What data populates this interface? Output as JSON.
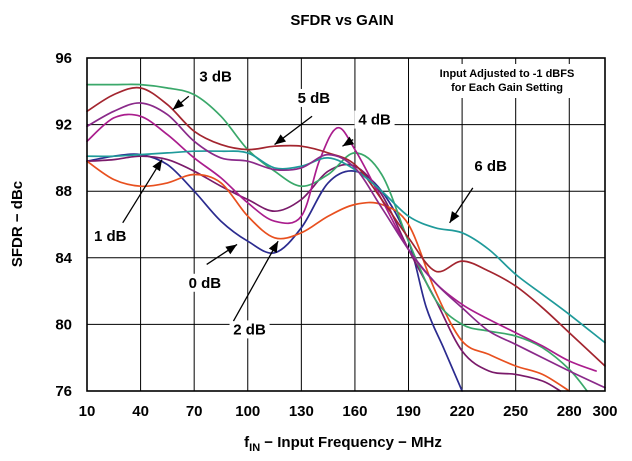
{
  "chart_data": {
    "type": "line",
    "title": "SFDR vs GAIN",
    "xlabel": {
      "main": "f",
      "sub": "IN",
      "rest": " − Input Frequency − MHz"
    },
    "ylabel": "SFDR − dBc",
    "xlim": [
      10,
      300
    ],
    "ylim": [
      76,
      96
    ],
    "xticks": [
      "10",
      "40",
      "70",
      "100",
      "130",
      "160",
      "190",
      "220",
      "250",
      "280",
      "300"
    ],
    "yticks": [
      "76",
      "80",
      "84",
      "88",
      "92",
      "96"
    ],
    "grid": true,
    "note": [
      "Input Adjusted to -1 dBFS",
      "for Each Gain Setting"
    ],
    "series": [
      {
        "name": "0 dB",
        "color": "#2b2b8f",
        "x": [
          10,
          25,
          40,
          55,
          70,
          85,
          100,
          115,
          130,
          145,
          160,
          175,
          190,
          200,
          210,
          220
        ],
        "y": [
          89.8,
          90.1,
          90.2,
          89.6,
          88.0,
          86.2,
          85.0,
          84.3,
          85.8,
          88.5,
          89.2,
          88.0,
          85.0,
          81.0,
          78.5,
          76.0
        ]
      },
      {
        "name": "1 dB",
        "color": "#7a1a6a",
        "x": [
          10,
          25,
          40,
          55,
          70,
          85,
          100,
          115,
          130,
          145,
          160,
          175,
          190,
          205,
          220,
          235,
          250,
          265,
          275
        ],
        "y": [
          89.8,
          89.9,
          90.1,
          89.9,
          89.2,
          88.3,
          87.5,
          86.8,
          87.5,
          89.2,
          89.5,
          87.8,
          84.5,
          81.5,
          78.4,
          77.2,
          77.0,
          76.6,
          76.0
        ]
      },
      {
        "name": "2 dB",
        "color": "#e8501f",
        "x": [
          10,
          25,
          40,
          55,
          70,
          85,
          100,
          115,
          130,
          145,
          160,
          175,
          190,
          205,
          220,
          235,
          250,
          265,
          280
        ],
        "y": [
          89.8,
          88.7,
          88.3,
          88.5,
          89.0,
          88.5,
          86.5,
          85.2,
          85.5,
          86.5,
          87.2,
          87.2,
          86.0,
          82.0,
          79.0,
          78.2,
          77.5,
          77.0,
          76.0
        ]
      },
      {
        "name": "3 dB",
        "color": "#3aa86a",
        "x": [
          10,
          25,
          40,
          55,
          70,
          85,
          100,
          115,
          130,
          145,
          160,
          175,
          190,
          205,
          220,
          235,
          250,
          265,
          280,
          290
        ],
        "y": [
          94.4,
          94.4,
          94.4,
          94.2,
          93.8,
          92.5,
          90.5,
          89.2,
          88.3,
          89.0,
          90.3,
          89.0,
          85.0,
          81.5,
          80.0,
          79.6,
          79.3,
          78.6,
          77.3,
          76.0
        ]
      },
      {
        "name": "4 dB",
        "color": "#aa1d8d",
        "x": [
          10,
          25,
          40,
          55,
          70,
          85,
          100,
          115,
          130,
          140,
          150,
          160,
          175,
          190,
          205,
          220,
          235,
          250,
          265,
          280,
          295
        ],
        "y": [
          91.0,
          92.4,
          92.5,
          91.4,
          90.0,
          88.8,
          87.3,
          86.2,
          86.5,
          89.8,
          91.8,
          90.5,
          87.5,
          84.5,
          82.5,
          81.2,
          80.3,
          79.5,
          78.7,
          77.8,
          77.2
        ]
      },
      {
        "name": "5 dB",
        "color": "#a3252f",
        "x": [
          10,
          25,
          40,
          55,
          70,
          85,
          100,
          115,
          130,
          145,
          160,
          175,
          190,
          205,
          220,
          235,
          250,
          265,
          280,
          300
        ],
        "y": [
          92.8,
          93.8,
          94.2,
          93.2,
          91.6,
          90.8,
          90.5,
          90.7,
          90.7,
          90.3,
          89.6,
          87.5,
          85.2,
          83.2,
          83.8,
          83.2,
          82.3,
          81.0,
          79.5,
          77.5
        ]
      },
      {
        "name": "6 dB",
        "color": "#1f9a9a",
        "x": [
          10,
          25,
          40,
          55,
          70,
          85,
          100,
          115,
          130,
          145,
          160,
          175,
          190,
          205,
          220,
          235,
          250,
          265,
          280,
          300
        ],
        "y": [
          90.1,
          90.1,
          90.2,
          90.3,
          90.4,
          90.4,
          90.3,
          89.4,
          89.5,
          90.0,
          89.3,
          88.0,
          86.5,
          85.8,
          85.5,
          84.5,
          83.0,
          81.8,
          80.6,
          78.9
        ]
      },
      {
        "name": "",
        "color": "#8a2a8a",
        "x": [
          10,
          25,
          40,
          55,
          70,
          85,
          100,
          115,
          130,
          145,
          160,
          175,
          190,
          205,
          220,
          235,
          250,
          265,
          280,
          300
        ],
        "y": [
          91.9,
          92.8,
          93.3,
          92.6,
          91.0,
          90.0,
          89.8,
          89.3,
          89.4,
          90.2,
          89.4,
          87.0,
          84.5,
          82.5,
          81.0,
          79.6,
          78.8,
          78.0,
          77.2,
          76.2
        ]
      }
    ],
    "annotations": [
      {
        "label": "3 dB",
        "text_at": [
          82,
          94.6
        ],
        "arrow_from": [
          67,
          93.7
        ],
        "arrow_to": [
          58,
          92.9
        ]
      },
      {
        "label": "5 dB",
        "text_at": [
          137,
          93.3
        ],
        "arrow_from": [
          136,
          92.5
        ],
        "arrow_to": [
          115,
          90.8
        ]
      },
      {
        "label": "4 dB",
        "text_at": [
          171,
          92.0
        ],
        "arrow_from": [
          159,
          91.1
        ],
        "arrow_to": [
          153,
          90.7
        ]
      },
      {
        "label": "6 dB",
        "text_at": [
          236,
          89.2
        ],
        "arrow_from": [
          226,
          88.2
        ],
        "arrow_to": [
          213,
          86.1
        ]
      },
      {
        "label": "1 dB",
        "text_at": [
          23,
          85.0
        ],
        "arrow_from": [
          30,
          86.1
        ],
        "arrow_to": [
          52,
          89.9
        ]
      },
      {
        "label": "0 dB",
        "text_at": [
          76,
          82.2
        ],
        "arrow_from": [
          77,
          83.6
        ],
        "arrow_to": [
          94,
          84.8
        ]
      },
      {
        "label": "2 dB",
        "text_at": [
          101,
          79.4
        ],
        "arrow_from": [
          92,
          80.2
        ],
        "arrow_to": [
          117,
          85.0
        ]
      }
    ]
  }
}
